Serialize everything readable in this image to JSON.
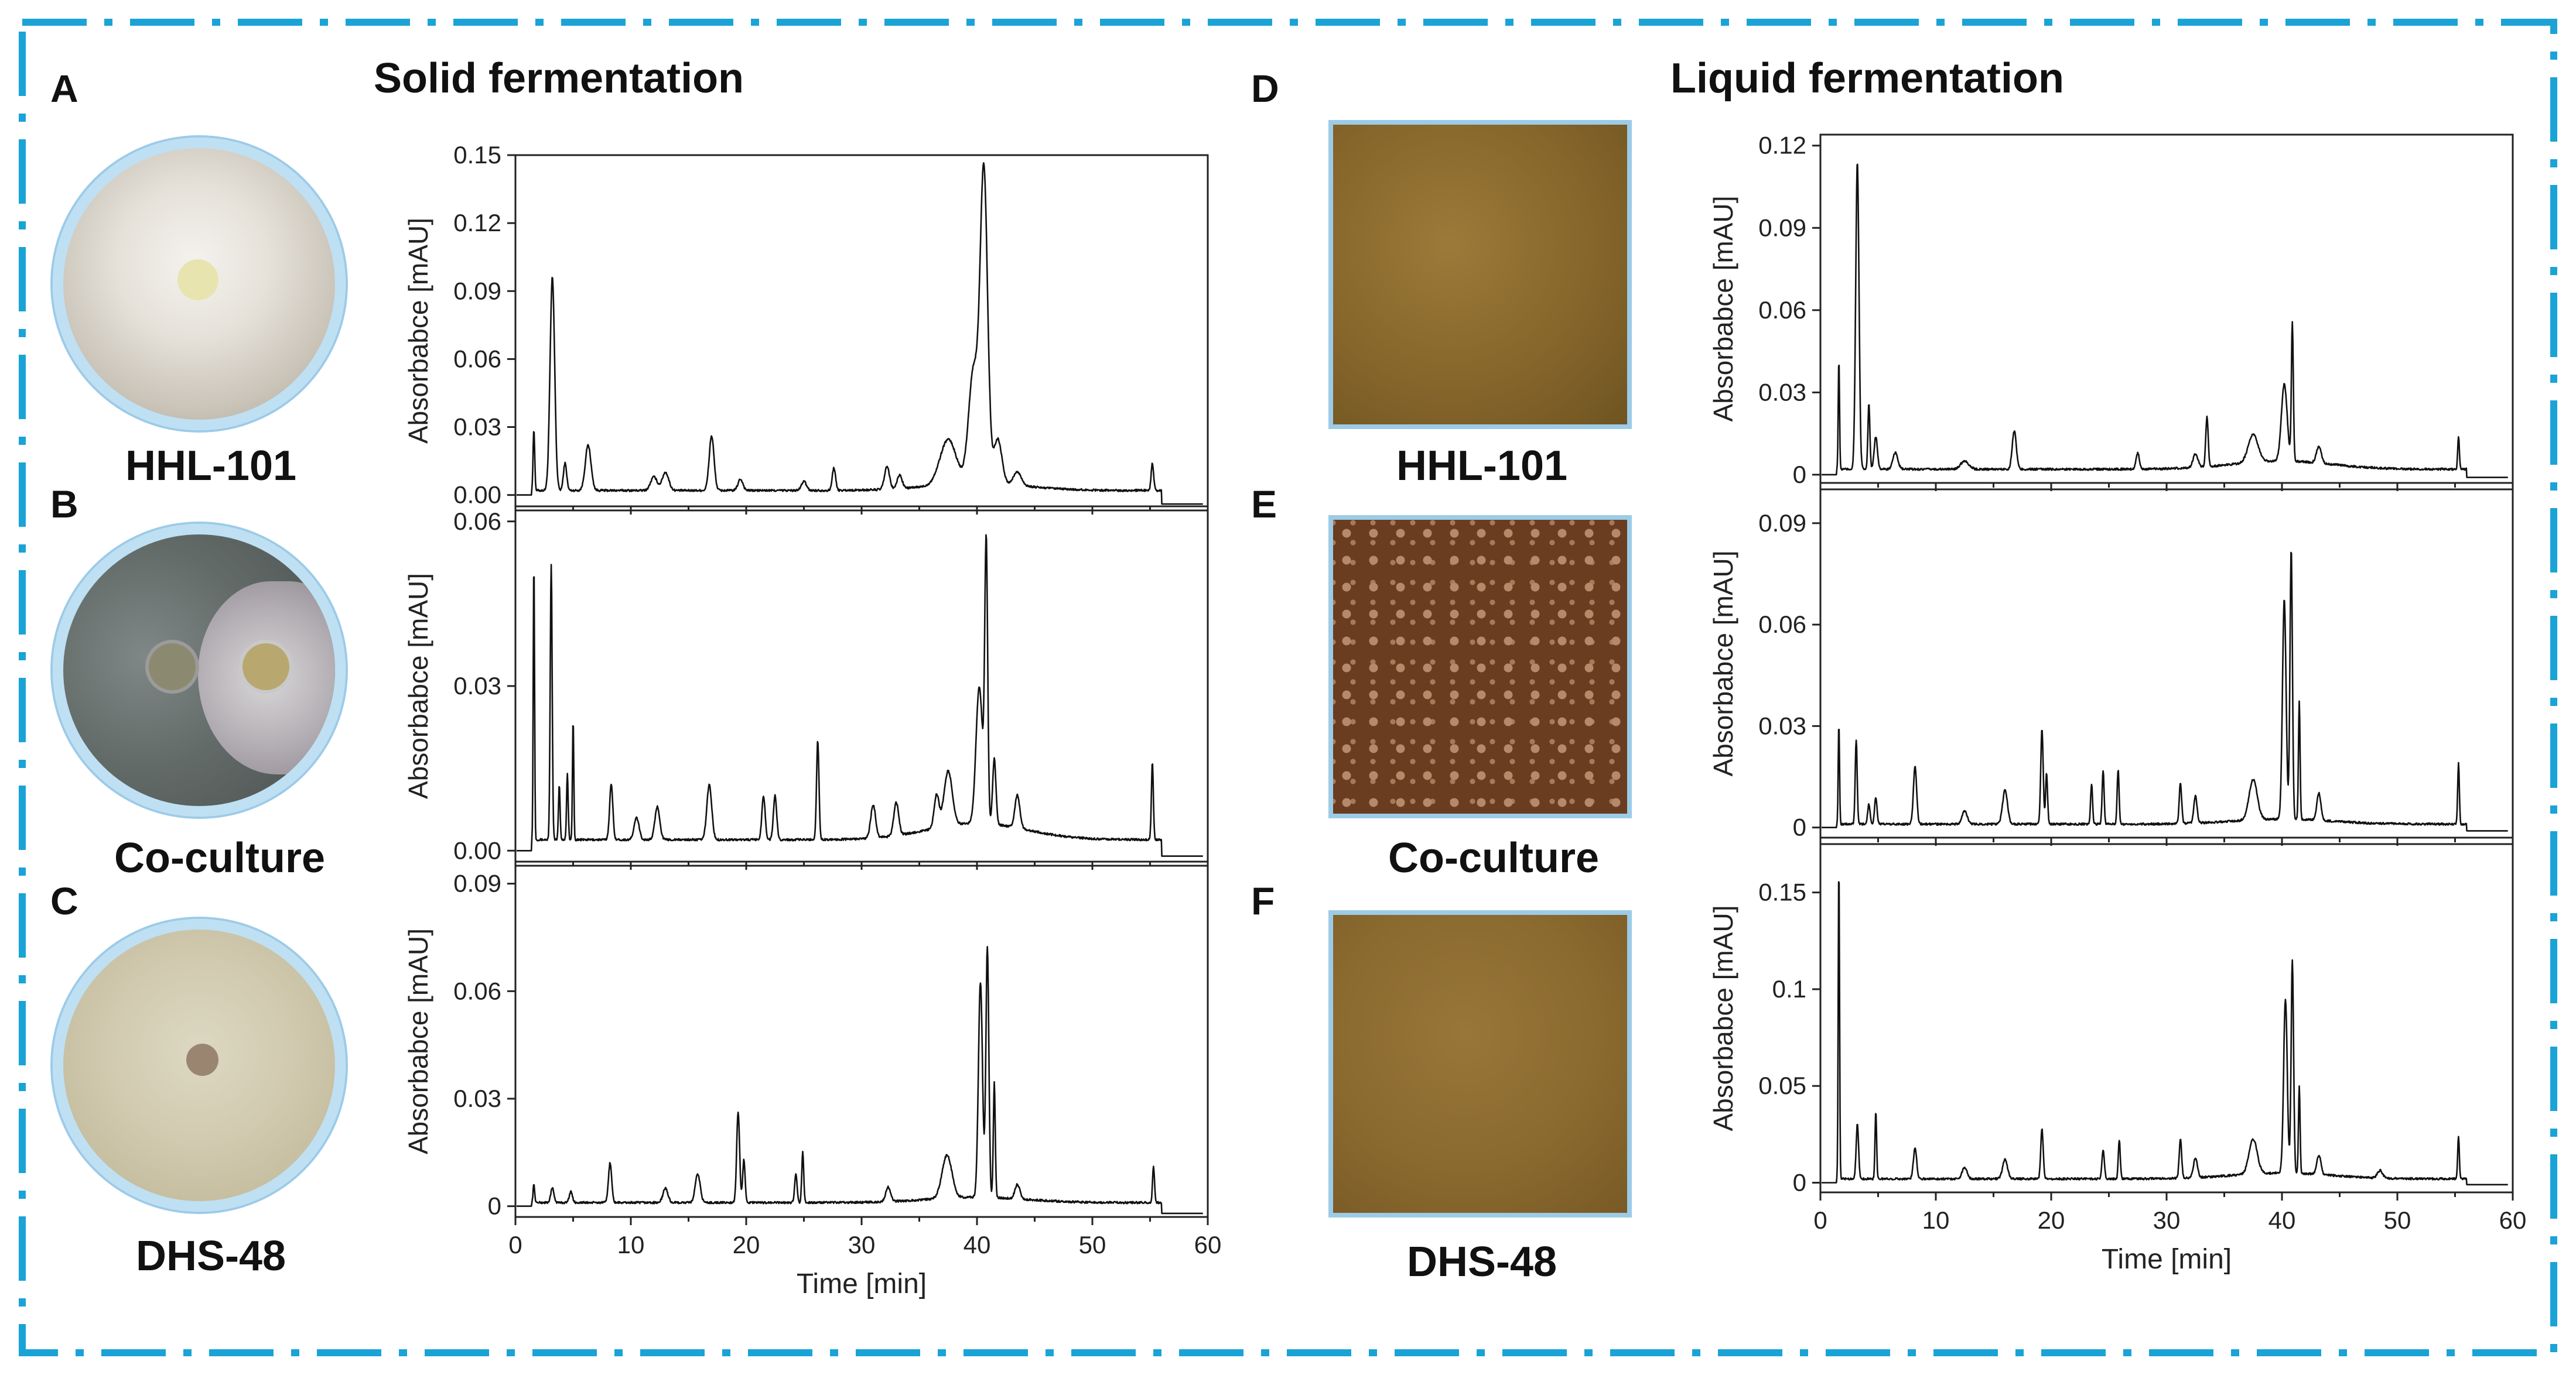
{
  "sections": {
    "solid_title": "Solid fermentation",
    "liquid_title": "Liquid fermentation"
  },
  "panels": {
    "A": "A",
    "B": "B",
    "C": "C",
    "D": "D",
    "E": "E",
    "F": "F"
  },
  "samples": {
    "solid": [
      "HHL-101",
      "Co-culture",
      "DHS-48"
    ],
    "liquid": [
      "HHL-101",
      "Co-culture",
      "DHS-48"
    ]
  },
  "colors": {
    "frame": "#1aa3d6",
    "dish_rim": "#bfe0f3",
    "trace": "#111111",
    "hhl_plate": "#d9d6cf",
    "coculture_plate": "#6d7472",
    "dhs_plate": "#cfc8a8",
    "hhl_broth": "#8c6a2c",
    "coculture_broth": "#6e3f22",
    "dhs_broth": "#8d6a30"
  },
  "icons": {
    "hhl_plate": "petri-dish-white-mycelium",
    "coculture_plate": "petri-dish-two-colonies",
    "dhs_plate": "petri-dish-cream-colony",
    "hhl_broth": "broth-olive",
    "coculture_broth": "broth-brown-droplets",
    "dhs_broth": "broth-amber"
  },
  "chart_data": [
    {
      "type": "line",
      "group": "solid",
      "sample": "HHL-101",
      "ylabel": "Absorbabce [mAU]",
      "xlabel": "",
      "xlim": [
        0,
        60
      ],
      "ylim": [
        -0.005,
        0.15
      ],
      "yticks": [
        0.0,
        0.03,
        0.06,
        0.09,
        0.12,
        0.15
      ],
      "ytick_labels": [
        "0.00",
        "0.03",
        "0.06",
        "0.09",
        "0.12",
        "0.15"
      ],
      "xticks": [],
      "xtick_labels": [],
      "baseline": 0.002,
      "tail_level": -0.004,
      "peaks": [
        [
          1.6,
          0.027,
          0.1
        ],
        [
          3.2,
          0.094,
          0.28
        ],
        [
          4.3,
          0.012,
          0.2
        ],
        [
          6.3,
          0.02,
          0.35
        ],
        [
          12,
          0.006,
          0.4
        ],
        [
          13,
          0.008,
          0.4
        ],
        [
          17,
          0.024,
          0.3
        ],
        [
          19.5,
          0.005,
          0.3
        ],
        [
          25,
          0.004,
          0.3
        ],
        [
          27.6,
          0.01,
          0.2
        ],
        [
          32.2,
          0.01,
          0.3
        ],
        [
          33.3,
          0.006,
          0.3
        ],
        [
          37.5,
          0.02,
          1.0
        ],
        [
          40.6,
          0.136,
          0.45
        ],
        [
          39.7,
          0.05,
          0.6
        ],
        [
          41.8,
          0.02,
          0.5
        ],
        [
          43.5,
          0.006,
          0.5
        ],
        [
          55.2,
          0.012,
          0.15
        ]
      ]
    },
    {
      "type": "line",
      "group": "solid",
      "sample": "Co-culture",
      "ylabel": "Absorbabce [mAU]",
      "xlabel": "",
      "xlim": [
        0,
        60
      ],
      "ylim": [
        -0.002,
        0.062
      ],
      "yticks": [
        0.0,
        0.03,
        0.06
      ],
      "ytick_labels": [
        "0.00",
        "0.03",
        "0.06"
      ],
      "xticks": [],
      "xtick_labels": [],
      "baseline": 0.002,
      "tail_level": -0.001,
      "peaks": [
        [
          1.6,
          0.051,
          0.08
        ],
        [
          3.1,
          0.05,
          0.12
        ],
        [
          3.8,
          0.01,
          0.1
        ],
        [
          4.5,
          0.012,
          0.1
        ],
        [
          5.0,
          0.022,
          0.08
        ],
        [
          8.3,
          0.01,
          0.2
        ],
        [
          10.5,
          0.004,
          0.3
        ],
        [
          12.3,
          0.006,
          0.3
        ],
        [
          16.8,
          0.01,
          0.3
        ],
        [
          21.5,
          0.008,
          0.2
        ],
        [
          22.5,
          0.008,
          0.2
        ],
        [
          26.2,
          0.018,
          0.15
        ],
        [
          31,
          0.006,
          0.3
        ],
        [
          33,
          0.006,
          0.3
        ],
        [
          36.5,
          0.006,
          0.3
        ],
        [
          37.5,
          0.01,
          0.5
        ],
        [
          40.2,
          0.025,
          0.4
        ],
        [
          40.8,
          0.05,
          0.18
        ],
        [
          41.5,
          0.012,
          0.2
        ],
        [
          43.5,
          0.006,
          0.3
        ],
        [
          55.2,
          0.014,
          0.12
        ]
      ]
    },
    {
      "type": "line",
      "group": "solid",
      "sample": "DHS-48",
      "ylabel": "Absorbabce [mAU]",
      "xlabel": "Time [min]",
      "xlim": [
        0,
        60
      ],
      "ylim": [
        -0.003,
        0.095
      ],
      "yticks": [
        0,
        0.03,
        0.06,
        0.09
      ],
      "ytick_labels": [
        "0",
        "0.03",
        "0.06",
        "0.09"
      ],
      "xticks": [
        0,
        10,
        20,
        30,
        40,
        50,
        60
      ],
      "xtick_labels": [
        "0",
        "10",
        "20",
        "30",
        "40",
        "50",
        "60"
      ],
      "baseline": 0.001,
      "tail_level": -0.002,
      "peaks": [
        [
          1.6,
          0.005,
          0.1
        ],
        [
          3.2,
          0.004,
          0.2
        ],
        [
          4.8,
          0.003,
          0.2
        ],
        [
          8.2,
          0.011,
          0.2
        ],
        [
          13,
          0.004,
          0.3
        ],
        [
          15.8,
          0.008,
          0.3
        ],
        [
          19.3,
          0.025,
          0.18
        ],
        [
          19.8,
          0.012,
          0.15
        ],
        [
          24.3,
          0.008,
          0.15
        ],
        [
          24.9,
          0.014,
          0.12
        ],
        [
          32.3,
          0.004,
          0.3
        ],
        [
          37.4,
          0.012,
          0.6
        ],
        [
          40.3,
          0.06,
          0.25
        ],
        [
          40.9,
          0.07,
          0.18
        ],
        [
          41.5,
          0.032,
          0.12
        ],
        [
          43.5,
          0.004,
          0.3
        ],
        [
          55.3,
          0.01,
          0.12
        ]
      ]
    },
    {
      "type": "line",
      "group": "liquid",
      "sample": "HHL-101",
      "ylabel": "Absorbabce [mAU]",
      "xlabel": "",
      "xlim": [
        0,
        60
      ],
      "ylim": [
        -0.003,
        0.124
      ],
      "yticks": [
        0,
        0.03,
        0.06,
        0.09,
        0.12
      ],
      "ytick_labels": [
        "0",
        "0.03",
        "0.06",
        "0.09",
        "0.12"
      ],
      "xticks": [],
      "xtick_labels": [],
      "baseline": 0.002,
      "tail_level": -0.001,
      "peaks": [
        [
          1.6,
          0.04,
          0.08
        ],
        [
          3.2,
          0.112,
          0.2
        ],
        [
          4.2,
          0.024,
          0.12
        ],
        [
          4.8,
          0.012,
          0.2
        ],
        [
          6.5,
          0.006,
          0.3
        ],
        [
          12.5,
          0.003,
          0.5
        ],
        [
          16.8,
          0.014,
          0.25
        ],
        [
          27.5,
          0.006,
          0.2
        ],
        [
          32.5,
          0.005,
          0.3
        ],
        [
          33.5,
          0.018,
          0.15
        ],
        [
          37.5,
          0.01,
          0.6
        ],
        [
          40.2,
          0.028,
          0.35
        ],
        [
          40.9,
          0.05,
          0.12
        ],
        [
          43.2,
          0.006,
          0.3
        ],
        [
          55.3,
          0.012,
          0.1
        ]
      ]
    },
    {
      "type": "line",
      "group": "liquid",
      "sample": "Co-culture",
      "ylabel": "Absorbabce [mAU]",
      "xlabel": "",
      "xlim": [
        0,
        60
      ],
      "ylim": [
        -0.003,
        0.1
      ],
      "yticks": [
        0,
        0.03,
        0.06,
        0.09
      ],
      "ytick_labels": [
        "0",
        "0.03",
        "0.06",
        "0.09"
      ],
      "xticks": [],
      "xtick_labels": [],
      "baseline": 0.001,
      "tail_level": -0.001,
      "peaks": [
        [
          1.6,
          0.03,
          0.08
        ],
        [
          3.1,
          0.025,
          0.12
        ],
        [
          4.2,
          0.006,
          0.15
        ],
        [
          4.8,
          0.008,
          0.15
        ],
        [
          8.2,
          0.017,
          0.2
        ],
        [
          12.5,
          0.004,
          0.3
        ],
        [
          16,
          0.01,
          0.3
        ],
        [
          19.2,
          0.028,
          0.15
        ],
        [
          19.6,
          0.015,
          0.12
        ],
        [
          23.5,
          0.012,
          0.12
        ],
        [
          24.5,
          0.016,
          0.12
        ],
        [
          25.8,
          0.016,
          0.12
        ],
        [
          31.2,
          0.012,
          0.15
        ],
        [
          32.5,
          0.008,
          0.2
        ],
        [
          37.5,
          0.012,
          0.5
        ],
        [
          40.2,
          0.065,
          0.22
        ],
        [
          40.8,
          0.08,
          0.15
        ],
        [
          41.5,
          0.035,
          0.1
        ],
        [
          43.2,
          0.008,
          0.25
        ],
        [
          55.3,
          0.018,
          0.1
        ]
      ]
    },
    {
      "type": "line",
      "group": "liquid",
      "sample": "DHS-48",
      "ylabel": "Absorbabce [mAU]",
      "xlabel": "Time [min]",
      "xlim": [
        0,
        60
      ],
      "ylim": [
        -0.005,
        0.175
      ],
      "yticks": [
        0,
        0.05,
        0.1,
        0.15
      ],
      "ytick_labels": [
        "0",
        "0.05",
        "0.1",
        "0.15"
      ],
      "xticks": [
        0,
        10,
        20,
        30,
        40,
        50,
        60
      ],
      "xtick_labels": [
        "0",
        "10",
        "20",
        "30",
        "40",
        "50",
        "60"
      ],
      "baseline": 0.002,
      "tail_level": -0.001,
      "peaks": [
        [
          1.6,
          0.163,
          0.08
        ],
        [
          3.2,
          0.028,
          0.15
        ],
        [
          4.8,
          0.035,
          0.1
        ],
        [
          8.2,
          0.016,
          0.2
        ],
        [
          12.5,
          0.006,
          0.3
        ],
        [
          16,
          0.01,
          0.3
        ],
        [
          19.2,
          0.026,
          0.15
        ],
        [
          24.5,
          0.015,
          0.15
        ],
        [
          25.9,
          0.02,
          0.12
        ],
        [
          31.2,
          0.02,
          0.15
        ],
        [
          32.5,
          0.01,
          0.25
        ],
        [
          37.5,
          0.018,
          0.5
        ],
        [
          40.3,
          0.09,
          0.22
        ],
        [
          40.9,
          0.11,
          0.15
        ],
        [
          41.5,
          0.045,
          0.1
        ],
        [
          43.2,
          0.01,
          0.25
        ],
        [
          48.5,
          0.004,
          0.3
        ],
        [
          55.3,
          0.022,
          0.1
        ]
      ]
    }
  ]
}
